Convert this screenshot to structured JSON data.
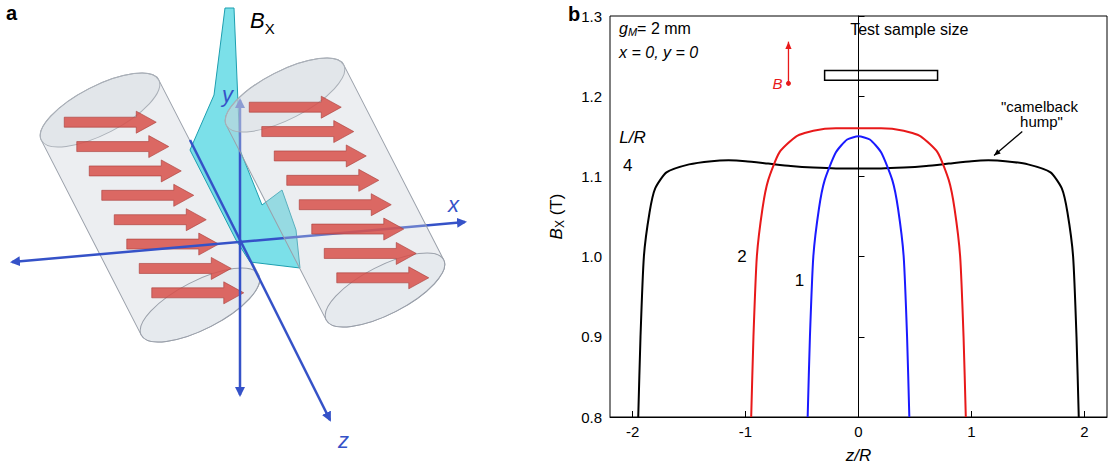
{
  "panel_a": {
    "label": "a",
    "field_label": {
      "main": "B",
      "sub": "X"
    },
    "axis_labels": [
      "x",
      "y",
      "z"
    ]
  },
  "chart_data": {
    "type": "line",
    "panel_label": "b",
    "x_label": "z/R",
    "y_label": {
      "main": "B",
      "sub": "X",
      "rest": " (T)"
    },
    "xlim": [
      -2.2,
      2.2
    ],
    "xticks": [
      -2,
      -1,
      0,
      1,
      2
    ],
    "ylim": [
      0.8,
      1.3
    ],
    "yticks": [
      0.8,
      0.9,
      {
        "value": 1,
        "label": "1.0"
      },
      1.1,
      1.2,
      1.3
    ],
    "grid": false,
    "annotations": {
      "gap": {
        "main": "g",
        "sub": "M",
        "rest": "= 2 mm"
      },
      "position_note": "x = 0, y = 0",
      "sample": "Test sample size",
      "field": "B",
      "hump": "\"camelback hump\"",
      "curve_param": "L/R"
    },
    "series": [
      {
        "name": "4",
        "color": "#000000",
        "x": [
          -1.95,
          -1.93,
          -1.9,
          -1.85,
          -1.8,
          -1.7,
          -1.5,
          -1.3,
          -1.15,
          -1.0,
          -0.8,
          -0.6,
          -0.4,
          -0.2,
          0,
          0.2,
          0.4,
          0.6,
          0.8,
          1.0,
          1.15,
          1.3,
          1.5,
          1.7,
          1.8,
          1.85,
          1.9,
          1.93,
          1.95
        ],
        "values": [
          0.8,
          0.9,
          1.0,
          1.055,
          1.085,
          1.105,
          1.115,
          1.119,
          1.12,
          1.119,
          1.116,
          1.113,
          1.111,
          1.11,
          1.11,
          1.11,
          1.111,
          1.113,
          1.116,
          1.119,
          1.12,
          1.119,
          1.115,
          1.105,
          1.085,
          1.055,
          1.0,
          0.9,
          0.8
        ]
      },
      {
        "name": "2",
        "color": "#e8191a",
        "x": [
          -0.95,
          -0.93,
          -0.9,
          -0.85,
          -0.8,
          -0.7,
          -0.55,
          -0.4,
          -0.2,
          0,
          0.2,
          0.4,
          0.55,
          0.7,
          0.8,
          0.85,
          0.9,
          0.93,
          0.95
        ],
        "values": [
          0.8,
          0.9,
          1.0,
          1.06,
          1.095,
          1.13,
          1.15,
          1.157,
          1.16,
          1.16,
          1.16,
          1.157,
          1.15,
          1.13,
          1.095,
          1.06,
          1.0,
          0.9,
          0.8
        ]
      },
      {
        "name": "1",
        "color": "#1a1aff",
        "x": [
          -0.45,
          -0.43,
          -0.4,
          -0.35,
          -0.3,
          -0.2,
          -0.1,
          0,
          0.1,
          0.2,
          0.3,
          0.35,
          0.4,
          0.43,
          0.45
        ],
        "values": [
          0.8,
          0.9,
          1.0,
          1.06,
          1.095,
          1.13,
          1.146,
          1.15,
          1.146,
          1.13,
          1.095,
          1.06,
          1.0,
          0.9,
          0.8
        ]
      }
    ]
  }
}
